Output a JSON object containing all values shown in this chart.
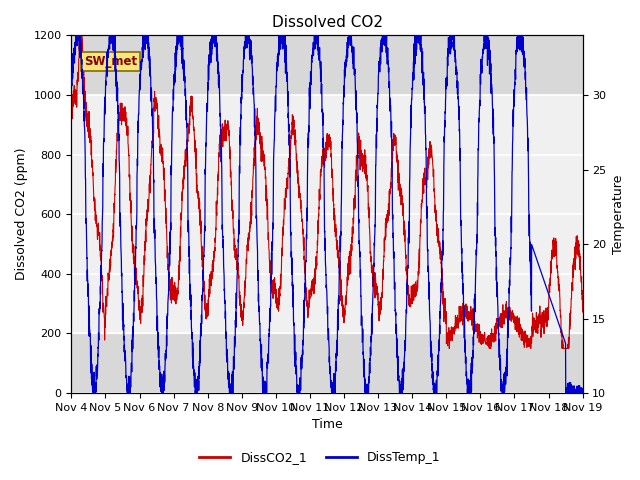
{
  "title": "Dissolved CO2",
  "xlabel": "Time",
  "ylabel_left": "Dissolved CO2 (ppm)",
  "ylabel_right": "Temperature",
  "ylim_left": [
    0,
    1200
  ],
  "ylim_right": [
    10,
    34
  ],
  "xlim": [
    0,
    15
  ],
  "xtick_labels": [
    "Nov 4",
    "Nov 5",
    "Nov 6",
    "Nov 7",
    "Nov 8",
    "Nov 9",
    "Nov 10",
    "Nov 11",
    "Nov 12",
    "Nov 13",
    "Nov 14",
    "Nov 15",
    "Nov 16",
    "Nov 17",
    "Nov 18",
    "Nov 19"
  ],
  "xtick_positions": [
    0,
    1,
    2,
    3,
    4,
    5,
    6,
    7,
    8,
    9,
    10,
    11,
    12,
    13,
    14,
    15
  ],
  "shaded_ymin": 200,
  "shaded_ymax": 1000,
  "line1_color": "#cc0000",
  "line2_color": "#0000cc",
  "line1_label": "DissCO2_1",
  "line2_label": "DissTemp_1",
  "station_label": "SW_met",
  "outer_bg": "#d8d8d8",
  "inner_bg": "#e8e8e8",
  "shaded_color": "#f0f0f0",
  "title_fontsize": 11,
  "axis_fontsize": 9,
  "tick_fontsize": 8,
  "legend_fontsize": 9
}
